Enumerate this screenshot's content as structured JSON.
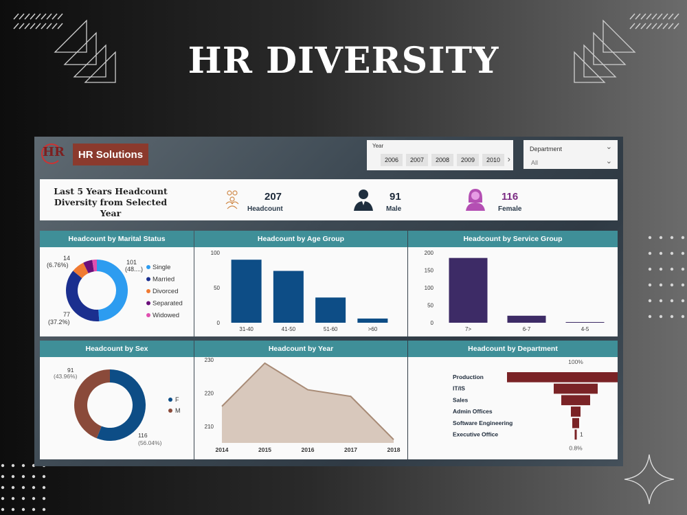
{
  "page_title": "HR DIVERSITY",
  "brand": {
    "logo_text": "HR",
    "name": "HR Solutions"
  },
  "year_slicer": {
    "label": "Year",
    "options": [
      "2006",
      "2007",
      "2008",
      "2009",
      "2010"
    ],
    "next_icon": "chevron-right-icon"
  },
  "department_slicer": {
    "label": "Department",
    "value": "All",
    "icon": "chevron-down-icon"
  },
  "kpis": {
    "title": "Last 5 Years Headcount Diversity from Selected Year",
    "headcount": {
      "value": "207",
      "label": "Headcount",
      "icon": "people-group-icon"
    },
    "male": {
      "value": "91",
      "label": "Male",
      "icon": "male-user-icon"
    },
    "female": {
      "value": "116",
      "label": "Female",
      "icon": "female-user-icon"
    }
  },
  "colors": {
    "teal": "#3f8f98",
    "navy": "#0d4d86",
    "purple": "#3d2b66",
    "brown": "#8a4a3a",
    "maroon": "#7a2326",
    "area": "#d8c8bc",
    "area_line": "#a88b76",
    "donut": [
      "#2d9cf0",
      "#1b2f8f",
      "#f07a32",
      "#6b0f7a",
      "#e04fb0"
    ]
  },
  "charts": {
    "marital": {
      "title": "Headcount by Marital Status",
      "labels": [
        "101 (48....)",
        "14 (6.76%)",
        "77 (37.2%)"
      ],
      "legend": [
        "Single",
        "Married",
        "Divorced",
        "Separated",
        "Widowed"
      ]
    },
    "age": {
      "title": "Headcount by Age Group"
    },
    "service": {
      "title": "Headcount by Service Group"
    },
    "sex": {
      "title": "Headcount by Sex",
      "labels": [
        "91 (43.96%)",
        "116 (56.04%)"
      ],
      "legend": [
        "F",
        "M"
      ]
    },
    "year": {
      "title": "Headcount by Year"
    },
    "department": {
      "title": "Headcount by Department",
      "top_label": "100%",
      "bottom_label": "0.8%",
      "last_value": "1"
    }
  },
  "chart_data": [
    {
      "type": "pie",
      "title": "Headcount by Marital Status",
      "categories": [
        "Single",
        "Married",
        "Divorced",
        "Separated",
        "Widowed"
      ],
      "values": [
        101,
        77,
        14,
        10,
        5
      ]
    },
    {
      "type": "bar",
      "title": "Headcount by Age Group",
      "categories": [
        "31-40",
        "41-50",
        "51-60",
        ">60"
      ],
      "values": [
        90,
        74,
        36,
        6
      ],
      "y_ticks": [
        "0",
        "50",
        "100"
      ],
      "ylim": [
        0,
        100
      ]
    },
    {
      "type": "bar",
      "title": "Headcount by Service Group",
      "categories": [
        "7>",
        "6-7",
        "4-5"
      ],
      "values": [
        185,
        20,
        2
      ],
      "y_ticks": [
        "0",
        "50",
        "100",
        "150",
        "200"
      ],
      "ylim": [
        0,
        200
      ]
    },
    {
      "type": "pie",
      "title": "Headcount by Sex",
      "categories": [
        "F",
        "M"
      ],
      "values": [
        116,
        91
      ]
    },
    {
      "type": "area",
      "title": "Headcount by Year",
      "x": [
        "2014",
        "2015",
        "2016",
        "2017",
        "2018"
      ],
      "values": [
        216,
        229,
        221,
        219,
        206
      ],
      "y_ticks": [
        "210",
        "220",
        "230"
      ],
      "ylim": [
        205,
        230
      ]
    },
    {
      "type": "bar",
      "title": "Headcount by Department",
      "categories": [
        "Production",
        "IT/IS",
        "Sales",
        "Admin Offices",
        "Software Engineering",
        "Executive Office"
      ],
      "values": [
        100,
        32,
        21,
        7,
        5,
        0.8
      ]
    }
  ]
}
